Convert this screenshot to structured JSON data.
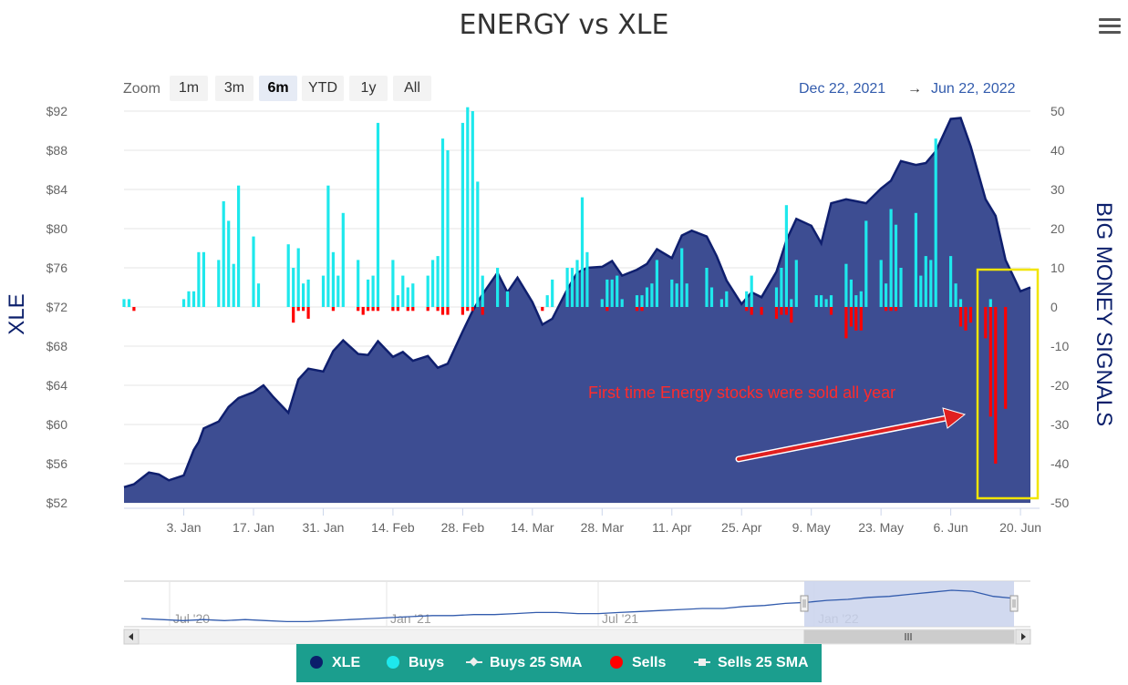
{
  "title": "ENERGY vs XLE",
  "zoom": {
    "label": "Zoom",
    "buttons": [
      "1m",
      "3m",
      "6m",
      "YTD",
      "1y",
      "All"
    ],
    "active": "6m"
  },
  "range": {
    "from": "Dec 22, 2021",
    "arrow": "→",
    "to": "Jun 22, 2022"
  },
  "legend": [
    {
      "label": "XLE",
      "color": "#0b1f6b",
      "marker": "circle"
    },
    {
      "label": "Buys",
      "color": "#1ee8ec",
      "marker": "circle"
    },
    {
      "label": "Buys 25 SMA",
      "color": "#eeeeee",
      "marker": "diamond"
    },
    {
      "label": "Sells",
      "color": "#ff0000",
      "marker": "circle"
    },
    {
      "label": "Sells 25 SMA",
      "color": "#eeeeee",
      "marker": "square"
    }
  ],
  "colors": {
    "area_fill": "#3d4d92",
    "area_line": "#0f1f6e",
    "buys": "#1ee8ec",
    "sells": "#ff0000",
    "annotation_box": "#f2e500",
    "annotation_text": "#ff2b2b",
    "navigator_mask": "#c9d2ec",
    "navigator_line": "#335cad"
  },
  "chart_data": {
    "type": "area+bar",
    "x_axis": {
      "tick_labels": [
        "3. Jan",
        "17. Jan",
        "31. Jan",
        "14. Feb",
        "28. Feb",
        "14. Mar",
        "28. Mar",
        "11. Apr",
        "25. Apr",
        "9. May",
        "23. May",
        "6. Jun",
        "20. Jun"
      ],
      "range": [
        "2021-12-22",
        "2022-06-22"
      ]
    },
    "y_left": {
      "label": "XLE",
      "ticks": [
        "$52",
        "$56",
        "$60",
        "$64",
        "$68",
        "$72",
        "$76",
        "$80",
        "$84",
        "$88",
        "$92"
      ],
      "min": 52,
      "max": 92
    },
    "y_right": {
      "label": "BIG MONEY SIGNALS",
      "ticks": [
        "-50",
        "-40",
        "-30",
        "-20",
        "-10",
        "0",
        "10",
        "20",
        "30",
        "40",
        "50"
      ],
      "min": -50,
      "max": 50
    },
    "xle": {
      "name": "XLE",
      "points": [
        [
          "2021-12-22",
          53.6
        ],
        [
          "2021-12-24",
          53.9
        ],
        [
          "2021-12-27",
          55.1
        ],
        [
          "2021-12-29",
          54.9
        ],
        [
          "2021-12-31",
          54.3
        ],
        [
          "2022-01-03",
          54.8
        ],
        [
          "2022-01-05",
          57.4
        ],
        [
          "2022-01-06",
          58.2
        ],
        [
          "2022-01-07",
          59.6
        ],
        [
          "2022-01-10",
          60.3
        ],
        [
          "2022-01-12",
          61.8
        ],
        [
          "2022-01-14",
          62.7
        ],
        [
          "2022-01-17",
          63.3
        ],
        [
          "2022-01-19",
          64.0
        ],
        [
          "2022-01-21",
          62.8
        ],
        [
          "2022-01-24",
          61.2
        ],
        [
          "2022-01-26",
          64.6
        ],
        [
          "2022-01-28",
          65.7
        ],
        [
          "2022-01-31",
          65.4
        ],
        [
          "2022-02-02",
          67.5
        ],
        [
          "2022-02-04",
          68.6
        ],
        [
          "2022-02-07",
          67.2
        ],
        [
          "2022-02-09",
          67.1
        ],
        [
          "2022-02-11",
          68.5
        ],
        [
          "2022-02-14",
          66.9
        ],
        [
          "2022-02-16",
          67.4
        ],
        [
          "2022-02-18",
          66.5
        ],
        [
          "2022-02-21",
          67.0
        ],
        [
          "2022-02-23",
          65.8
        ],
        [
          "2022-02-25",
          66.2
        ],
        [
          "2022-02-28",
          69.5
        ],
        [
          "2022-03-02",
          71.6
        ],
        [
          "2022-03-04",
          73.3
        ],
        [
          "2022-03-07",
          75.5
        ],
        [
          "2022-03-09",
          73.5
        ],
        [
          "2022-03-11",
          75.0
        ],
        [
          "2022-03-14",
          72.5
        ],
        [
          "2022-03-16",
          70.2
        ],
        [
          "2022-03-18",
          70.8
        ],
        [
          "2022-03-21",
          73.8
        ],
        [
          "2022-03-23",
          75.5
        ],
        [
          "2022-03-25",
          76.0
        ],
        [
          "2022-03-28",
          76.1
        ],
        [
          "2022-03-30",
          76.7
        ],
        [
          "2022-04-01",
          75.2
        ],
        [
          "2022-04-04",
          75.8
        ],
        [
          "2022-04-06",
          76.4
        ],
        [
          "2022-04-08",
          77.9
        ],
        [
          "2022-04-11",
          77.0
        ],
        [
          "2022-04-13",
          79.3
        ],
        [
          "2022-04-15",
          79.8
        ],
        [
          "2022-04-18",
          79.2
        ],
        [
          "2022-04-20",
          77.2
        ],
        [
          "2022-04-22",
          74.7
        ],
        [
          "2022-04-25",
          72.3
        ],
        [
          "2022-04-27",
          73.5
        ],
        [
          "2022-04-29",
          73.0
        ],
        [
          "2022-05-02",
          75.6
        ],
        [
          "2022-05-04",
          78.8
        ],
        [
          "2022-05-06",
          81.0
        ],
        [
          "2022-05-09",
          80.3
        ],
        [
          "2022-05-11",
          78.5
        ],
        [
          "2022-05-13",
          82.6
        ],
        [
          "2022-05-16",
          83.0
        ],
        [
          "2022-05-18",
          82.8
        ],
        [
          "2022-05-20",
          82.6
        ],
        [
          "2022-05-23",
          84.1
        ],
        [
          "2022-05-25",
          84.9
        ],
        [
          "2022-05-27",
          86.9
        ],
        [
          "2022-05-30",
          86.5
        ],
        [
          "2022-06-01",
          86.7
        ],
        [
          "2022-06-03",
          87.9
        ],
        [
          "2022-06-06",
          91.2
        ],
        [
          "2022-06-08",
          91.3
        ],
        [
          "2022-06-10",
          88.4
        ],
        [
          "2022-06-13",
          83.0
        ],
        [
          "2022-06-15",
          81.3
        ],
        [
          "2022-06-17",
          76.8
        ],
        [
          "2022-06-20",
          73.6
        ],
        [
          "2022-06-22",
          74.0
        ]
      ]
    },
    "buys": {
      "name": "Buys",
      "points": [
        [
          "2021-12-22",
          2.0
        ],
        [
          "2021-12-23",
          2.0
        ],
        [
          "2022-01-03",
          2.0
        ],
        [
          "2022-01-04",
          4.0
        ],
        [
          "2022-01-05",
          4.0
        ],
        [
          "2022-01-06",
          14.0
        ],
        [
          "2022-01-07",
          14.0
        ],
        [
          "2022-01-10",
          12.0
        ],
        [
          "2022-01-11",
          27.0
        ],
        [
          "2022-01-12",
          22.0
        ],
        [
          "2022-01-13",
          11.0
        ],
        [
          "2022-01-14",
          31.0
        ],
        [
          "2022-01-17",
          18.0
        ],
        [
          "2022-01-18",
          6.0
        ],
        [
          "2022-01-24",
          16.0
        ],
        [
          "2022-01-25",
          10.0
        ],
        [
          "2022-01-26",
          15.0
        ],
        [
          "2022-01-27",
          6.0
        ],
        [
          "2022-01-28",
          7.0
        ],
        [
          "2022-01-31",
          8.0
        ],
        [
          "2022-02-01",
          31.0
        ],
        [
          "2022-02-02",
          14.0
        ],
        [
          "2022-02-03",
          8.0
        ],
        [
          "2022-02-04",
          24.0
        ],
        [
          "2022-02-07",
          12.0
        ],
        [
          "2022-02-09",
          7.0
        ],
        [
          "2022-02-10",
          8.0
        ],
        [
          "2022-02-11",
          47.0
        ],
        [
          "2022-02-14",
          12.0
        ],
        [
          "2022-02-15",
          3.0
        ],
        [
          "2022-02-16",
          8.0
        ],
        [
          "2022-02-17",
          5.0
        ],
        [
          "2022-02-18",
          6.0
        ],
        [
          "2022-02-21",
          8.0
        ],
        [
          "2022-02-22",
          12.0
        ],
        [
          "2022-02-23",
          13.0
        ],
        [
          "2022-02-24",
          43.0
        ],
        [
          "2022-02-25",
          40.0
        ],
        [
          "2022-02-28",
          47.0
        ],
        [
          "2022-03-01",
          51.0
        ],
        [
          "2022-03-02",
          50.0
        ],
        [
          "2022-03-03",
          32.0
        ],
        [
          "2022-03-04",
          8.0
        ],
        [
          "2022-03-07",
          10.0
        ],
        [
          "2022-03-09",
          4.0
        ],
        [
          "2022-03-17",
          3.0
        ],
        [
          "2022-03-18",
          7.0
        ],
        [
          "2022-03-21",
          10.0
        ],
        [
          "2022-03-22",
          10.0
        ],
        [
          "2022-03-23",
          12.0
        ],
        [
          "2022-03-24",
          28.0
        ],
        [
          "2022-03-25",
          14.0
        ],
        [
          "2022-03-28",
          2.0
        ],
        [
          "2022-03-29",
          7.0
        ],
        [
          "2022-03-30",
          7.0
        ],
        [
          "2022-03-31",
          8.0
        ],
        [
          "2022-04-01",
          2.0
        ],
        [
          "2022-04-04",
          3.0
        ],
        [
          "2022-04-05",
          3.0
        ],
        [
          "2022-04-06",
          5.0
        ],
        [
          "2022-04-07",
          6.0
        ],
        [
          "2022-04-08",
          12.0
        ],
        [
          "2022-04-11",
          7.0
        ],
        [
          "2022-04-12",
          6.0
        ],
        [
          "2022-04-13",
          15.0
        ],
        [
          "2022-04-14",
          6.0
        ],
        [
          "2022-04-18",
          10.0
        ],
        [
          "2022-04-19",
          5.0
        ],
        [
          "2022-04-21",
          2.0
        ],
        [
          "2022-04-22",
          4.0
        ],
        [
          "2022-04-26",
          4.0
        ],
        [
          "2022-04-27",
          8.0
        ],
        [
          "2022-05-02",
          5.0
        ],
        [
          "2022-05-03",
          10.0
        ],
        [
          "2022-05-04",
          26.0
        ],
        [
          "2022-05-05",
          2.0
        ],
        [
          "2022-05-06",
          12.0
        ],
        [
          "2022-05-10",
          3.0
        ],
        [
          "2022-05-11",
          3.0
        ],
        [
          "2022-05-12",
          2.0
        ],
        [
          "2022-05-13",
          3.0
        ],
        [
          "2022-05-16",
          11.0
        ],
        [
          "2022-05-17",
          7.0
        ],
        [
          "2022-05-18",
          3.0
        ],
        [
          "2022-05-19",
          4.0
        ],
        [
          "2022-05-20",
          22.0
        ],
        [
          "2022-05-23",
          12.0
        ],
        [
          "2022-05-24",
          6.0
        ],
        [
          "2022-05-25",
          25.0
        ],
        [
          "2022-05-26",
          21.0
        ],
        [
          "2022-05-27",
          10.0
        ],
        [
          "2022-05-30",
          24.0
        ],
        [
          "2022-05-31",
          8.0
        ],
        [
          "2022-06-01",
          13.0
        ],
        [
          "2022-06-02",
          12.0
        ],
        [
          "2022-06-03",
          43.0
        ],
        [
          "2022-06-06",
          13.0
        ],
        [
          "2022-06-07",
          6.0
        ],
        [
          "2022-06-08",
          2.0
        ],
        [
          "2022-06-14",
          2.0
        ]
      ]
    },
    "sells": {
      "name": "Sells",
      "points": [
        [
          "2021-12-24",
          -1.0
        ],
        [
          "2022-01-25",
          -4.0
        ],
        [
          "2022-01-26",
          -1.0
        ],
        [
          "2022-01-27",
          -1.0
        ],
        [
          "2022-01-28",
          -3.0
        ],
        [
          "2022-02-02",
          -1.0
        ],
        [
          "2022-02-07",
          -1.0
        ],
        [
          "2022-02-08",
          -2.0
        ],
        [
          "2022-02-09",
          -1.0
        ],
        [
          "2022-02-10",
          -1.0
        ],
        [
          "2022-02-11",
          -1.0
        ],
        [
          "2022-02-14",
          -1.0
        ],
        [
          "2022-02-15",
          -1.0
        ],
        [
          "2022-02-17",
          -1.0
        ],
        [
          "2022-02-18",
          -1.0
        ],
        [
          "2022-02-21",
          -1.0
        ],
        [
          "2022-02-23",
          -1.0
        ],
        [
          "2022-02-24",
          -2.0
        ],
        [
          "2022-02-25",
          -2.0
        ],
        [
          "2022-02-28",
          -2.0
        ],
        [
          "2022-03-01",
          -1.0
        ],
        [
          "2022-03-02",
          -1.0
        ],
        [
          "2022-03-04",
          -2.0
        ],
        [
          "2022-03-16",
          -1.0
        ],
        [
          "2022-03-29",
          -1.0
        ],
        [
          "2022-04-04",
          -1.0
        ],
        [
          "2022-04-05",
          -1.0
        ],
        [
          "2022-04-26",
          -1.0
        ],
        [
          "2022-04-27",
          -2.0
        ],
        [
          "2022-04-29",
          -2.0
        ],
        [
          "2022-05-02",
          -3.0
        ],
        [
          "2022-05-03",
          -2.0
        ],
        [
          "2022-05-04",
          -2.0
        ],
        [
          "2022-05-05",
          -4.0
        ],
        [
          "2022-05-13",
          -2.0
        ],
        [
          "2022-05-16",
          -8.0
        ],
        [
          "2022-05-17",
          -5.0
        ],
        [
          "2022-05-18",
          -6.0
        ],
        [
          "2022-05-19",
          -6.0
        ],
        [
          "2022-05-24",
          -1.0
        ],
        [
          "2022-05-25",
          -1.0
        ],
        [
          "2022-05-26",
          -1.0
        ],
        [
          "2022-06-08",
          -5.0
        ],
        [
          "2022-06-09",
          -6.0
        ],
        [
          "2022-06-10",
          -4.0
        ],
        [
          "2022-06-13",
          -8.0
        ],
        [
          "2022-06-14",
          -28.0
        ],
        [
          "2022-06-15",
          -40.0
        ],
        [
          "2022-06-17",
          -26.0
        ]
      ]
    },
    "annotation": {
      "text": "First time Energy stocks were sold all year"
    },
    "navigator": {
      "tick_labels": [
        "Jul '20",
        "Jan '21",
        "Jul '21",
        "Jan '22"
      ],
      "series": [
        58,
        57,
        56,
        57,
        56,
        57,
        56,
        55,
        55,
        56,
        57,
        58,
        59,
        60,
        61,
        61,
        62,
        62,
        63,
        64,
        64,
        63,
        63,
        64,
        65,
        66,
        67,
        68,
        68,
        70,
        71,
        73,
        74,
        76,
        77,
        79,
        80,
        82,
        84,
        86,
        85,
        80,
        78
      ]
    }
  }
}
